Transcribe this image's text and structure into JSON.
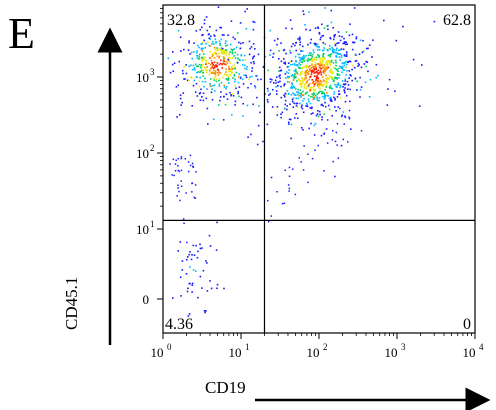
{
  "panel_label": "E",
  "chart_data": {
    "type": "scatter",
    "xlabel": "CD19",
    "ylabel": "CD45.1",
    "x_scale": "log",
    "y_scale": "biexponential",
    "xlim": [
      1,
      10000
    ],
    "ylim": [
      -2,
      5000
    ],
    "x_ticks": [
      {
        "value": 1,
        "base": "10",
        "exp": "0"
      },
      {
        "value": 10,
        "base": "10",
        "exp": "1"
      },
      {
        "value": 100,
        "base": "10",
        "exp": "2"
      },
      {
        "value": 1000,
        "base": "10",
        "exp": "3"
      },
      {
        "value": 10000,
        "base": "10",
        "exp": "4"
      }
    ],
    "y_ticks": [
      {
        "value": 0,
        "base": "0",
        "exp": ""
      },
      {
        "value": 10,
        "base": "10",
        "exp": "1"
      },
      {
        "value": 100,
        "base": "10",
        "exp": "2"
      },
      {
        "value": 1000,
        "base": "10",
        "exp": "3"
      }
    ],
    "gates": {
      "x": 20,
      "y": 13
    },
    "quadrants": [
      {
        "position": "top-left",
        "percent": "32.8"
      },
      {
        "position": "top-right",
        "percent": "62.8"
      },
      {
        "position": "bottom-left",
        "percent": "4.36"
      },
      {
        "position": "bottom-right",
        "percent": "0"
      }
    ],
    "populations": [
      {
        "center_x": 5,
        "center_y": 1500,
        "share": 0.33
      },
      {
        "center_x": 90,
        "center_y": 1100,
        "share": 0.63
      },
      {
        "center_x": 2.5,
        "center_y": 0.5,
        "share": 0.04
      }
    ],
    "density_colors": [
      "#1a1aff",
      "#00b8ff",
      "#00d060",
      "#e8e800",
      "#ff8c00",
      "#ff1a00"
    ]
  }
}
